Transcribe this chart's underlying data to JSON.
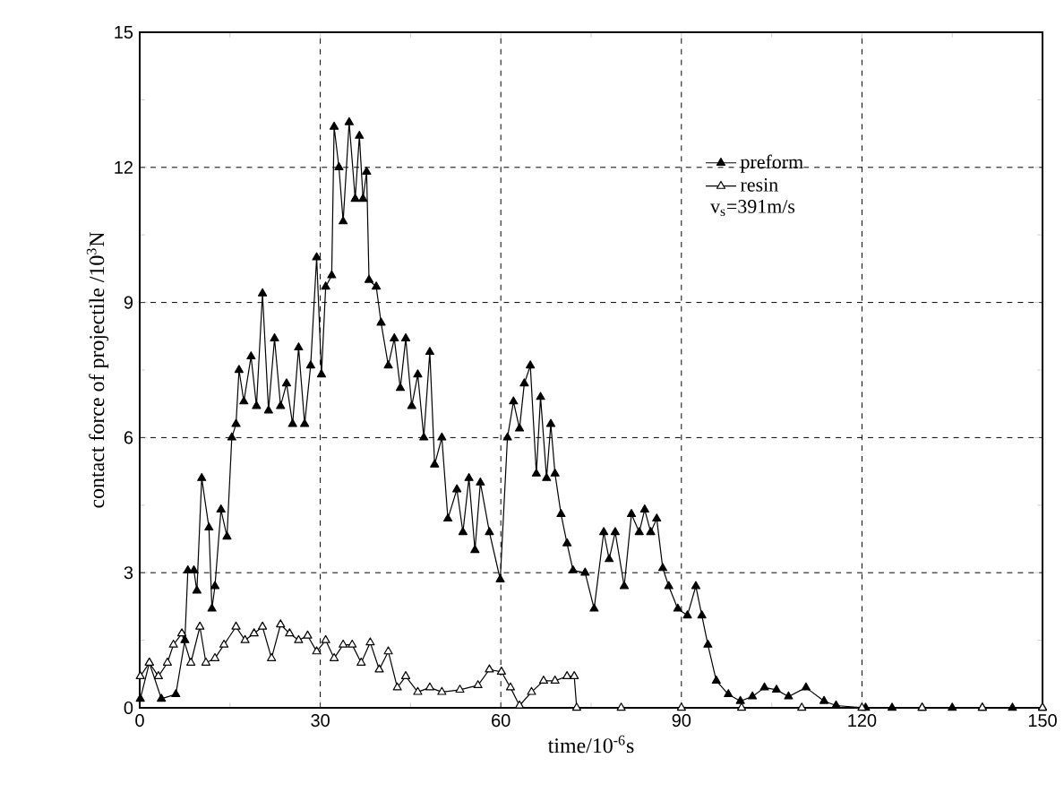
{
  "chart_data": {
    "type": "line",
    "xlabel": "time/10$^{-6}$s",
    "ylabel": "contact force of projectile /10$^{3}$N",
    "xlim": [
      0,
      150
    ],
    "ylim": [
      0,
      15
    ],
    "xticks": [
      0,
      30,
      60,
      90,
      120,
      150
    ],
    "yticks": [
      0,
      3,
      6,
      9,
      12,
      15
    ],
    "grid": true,
    "legend": "top right",
    "marker": "triangle",
    "line_style": "solid",
    "annotations": [
      "v$_{s}$=391m/s"
    ],
    "series": [
      {
        "name": "preform",
        "color": "#000000",
        "x": [
          0.1,
          1.6,
          3.6,
          6,
          7.5,
          8,
          9,
          9.5,
          10.3,
          11.5,
          12,
          12.5,
          13.5,
          14.5,
          15.3,
          16,
          16.5,
          17.3,
          18.5,
          19.4,
          20.4,
          21.4,
          22.4,
          23.4,
          24.4,
          25.4,
          26.4,
          27.4,
          28.4,
          29.4,
          30.2,
          30.9,
          31.9,
          32.3,
          33.1,
          33.8,
          34.8,
          35.8,
          36.5,
          37.1,
          37.7,
          38.1,
          39.3,
          40.1,
          41.3,
          42.3,
          43.3,
          44.2,
          45.2,
          46.2,
          47.2,
          48.2,
          49,
          50.2,
          51.2,
          52.7,
          53.7,
          54.7,
          55.7,
          56.6,
          58.1,
          59.9,
          61.1,
          62.1,
          63.1,
          63.9,
          64.9,
          65.9,
          66.6,
          67.6,
          68.3,
          69,
          70,
          71,
          72,
          74,
          75.5,
          77.1,
          78,
          79,
          80.5,
          81.7,
          83,
          83.9,
          84.9,
          85.9,
          86.9,
          87.9,
          89.4,
          91,
          92.4,
          93.4,
          94.4,
          95.8,
          97.8,
          99.8,
          101.8,
          103.8,
          105.8,
          107.8,
          110.7,
          113.7,
          115.7,
          120.6,
          125,
          130,
          135,
          140,
          145,
          150
        ],
        "values": [
          0.2,
          1,
          0.2,
          0.3,
          1.5,
          3.05,
          3.05,
          2.6,
          5.1,
          4,
          2.2,
          2.7,
          4.4,
          3.8,
          6,
          6.3,
          7.5,
          6.8,
          7.8,
          6.7,
          9.2,
          6.6,
          8.2,
          6.7,
          7.2,
          6.3,
          8,
          6.3,
          7.6,
          10,
          7.4,
          9.35,
          9.6,
          12.9,
          12,
          10.8,
          13,
          11.3,
          12.7,
          11.3,
          11.9,
          9.5,
          9.35,
          8.55,
          7.6,
          8.2,
          7.1,
          8.2,
          6.7,
          7.4,
          6,
          7.9,
          5.4,
          6,
          4.2,
          4.85,
          3.9,
          5.1,
          3.5,
          5,
          3.9,
          2.85,
          6,
          6.8,
          6.2,
          7.2,
          7.6,
          5.2,
          6.9,
          5.1,
          6.3,
          5.2,
          4.3,
          3.65,
          3.05,
          3,
          2.2,
          3.9,
          3.3,
          3.9,
          2.7,
          4.3,
          3.9,
          4.4,
          3.9,
          4.2,
          3.1,
          2.7,
          2.2,
          2.05,
          2.7,
          2.05,
          1.4,
          0.6,
          0.3,
          0.15,
          0.25,
          0.45,
          0.4,
          0.25,
          0.45,
          0.15,
          0.05,
          0,
          0,
          0,
          0,
          0,
          0,
          0
        ]
      },
      {
        "name": "resin",
        "color": "#000000",
        "x": [
          0.1,
          1.6,
          3.1,
          4.6,
          5.6,
          7,
          8.5,
          10,
          11,
          12.5,
          14,
          16,
          17.5,
          19,
          20.4,
          21.9,
          23.4,
          24.9,
          26.4,
          27.9,
          29.4,
          30.9,
          32.3,
          33.8,
          35.3,
          36.8,
          38.3,
          39.8,
          41.3,
          42.8,
          44.2,
          46.2,
          48.2,
          50.2,
          53.2,
          56.2,
          58.1,
          60.1,
          61.6,
          63.1,
          65.1,
          67.1,
          69,
          71,
          72.2,
          72.6,
          80,
          90,
          100,
          110,
          120,
          130,
          140,
          150
        ],
        "values": [
          0.7,
          1,
          0.7,
          1,
          1.4,
          1.65,
          1,
          1.8,
          1,
          1.1,
          1.4,
          1.8,
          1.5,
          1.65,
          1.8,
          1.1,
          1.85,
          1.65,
          1.5,
          1.6,
          1.25,
          1.5,
          1.1,
          1.4,
          1.4,
          1,
          1.45,
          0.85,
          1.25,
          0.45,
          0.7,
          0.35,
          0.45,
          0.35,
          0.4,
          0.5,
          0.85,
          0.8,
          0.45,
          0.05,
          0.35,
          0.6,
          0.6,
          0.7,
          0.7,
          0,
          0,
          0,
          0,
          0,
          0,
          0,
          0,
          0
        ]
      }
    ]
  }
}
